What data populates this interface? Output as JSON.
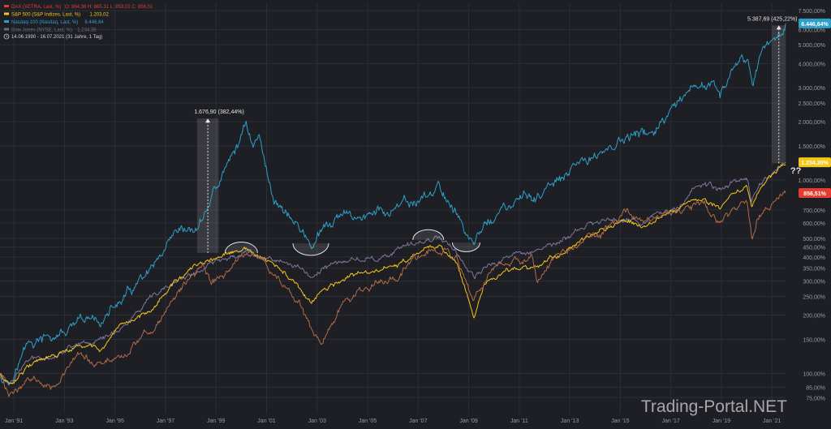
{
  "legend": {
    "items": [
      {
        "label": "DAX (XETRA, Last, %)",
        "ohlc": "O: 864,36  H: 865,31  L: 853,02  C: 856,51",
        "color": "#e03c31"
      },
      {
        "label": "S&P 500 (S&P Indizes, Last, %)",
        "ohlc": "1.203,02",
        "color": "#f5c518"
      },
      {
        "label": "Nasdaq-100 (Nasdaq, Last, %)",
        "ohlc": "6.446,64",
        "color": "#2e9fc7"
      },
      {
        "label": "Dow Jones (NYSE, Last, %)",
        "ohlc": "1.234,36",
        "color": "#6e6e78"
      }
    ],
    "period": "14.06.1990 - 16.07.2021  (31 Jahre, 1 Tag)"
  },
  "watermark": "Trading-Portal.NET",
  "annotations": {
    "peak2000": "1.676,90 (382,44%)",
    "now2021": "5.387,69 (425,22%)",
    "question": "??"
  },
  "colors": {
    "background": "#1e1f25",
    "grid": "#2c2e36",
    "nasdaq": "#2e9fc7",
    "sp500": "#f5c518",
    "dow": "#7e7599",
    "dax": "#b06a45",
    "text": "#9a9aa2"
  },
  "chart_data": {
    "type": "line",
    "title": "",
    "xlabel": "",
    "ylabel": "",
    "scale": "log",
    "xlim": [
      1990.45,
      2021.54
    ],
    "ylim": [
      62,
      8200
    ],
    "x_ticks": [
      {
        "year": 1991.0,
        "label": "Jan '91"
      },
      {
        "year": 1993.0,
        "label": "Jan '93"
      },
      {
        "year": 1995.0,
        "label": "Jan '95"
      },
      {
        "year": 1997.0,
        "label": "Jan '97"
      },
      {
        "year": 1999.0,
        "label": "Jan '99"
      },
      {
        "year": 2001.0,
        "label": "Jan '01"
      },
      {
        "year": 2003.0,
        "label": "Jan '03"
      },
      {
        "year": 2005.0,
        "label": "Jan '05"
      },
      {
        "year": 2007.0,
        "label": "Jan '07"
      },
      {
        "year": 2009.0,
        "label": "Jan '09"
      },
      {
        "year": 2011.0,
        "label": "Jan '11"
      },
      {
        "year": 2013.0,
        "label": "Jan '13"
      },
      {
        "year": 2015.0,
        "label": "Jan '15"
      },
      {
        "year": 2017.0,
        "label": "Jan '17"
      },
      {
        "year": 2019.0,
        "label": "Jan '19"
      },
      {
        "year": 2021.0,
        "label": "Jan '21"
      }
    ],
    "y_ticks": [
      {
        "value": 7500,
        "label": "7.500,00%"
      },
      {
        "value": 6000,
        "label": "6.000,00%"
      },
      {
        "value": 5000,
        "label": "5.000,00%"
      },
      {
        "value": 4000,
        "label": "4.000,00%"
      },
      {
        "value": 3000,
        "label": "3.000,00%"
      },
      {
        "value": 2500,
        "label": "2.500,00%"
      },
      {
        "value": 2000,
        "label": "2.000,00%"
      },
      {
        "value": 1500,
        "label": "1.500,00%"
      },
      {
        "value": 1000,
        "label": "1.000,00%"
      },
      {
        "value": 700,
        "label": "700,00%"
      },
      {
        "value": 600,
        "label": "600,00%"
      },
      {
        "value": 500,
        "label": "500,00%"
      },
      {
        "value": 450,
        "label": "450,00%"
      },
      {
        "value": 400,
        "label": "400,00%"
      },
      {
        "value": 350,
        "label": "350,00%"
      },
      {
        "value": 300,
        "label": "300,00%"
      },
      {
        "value": 250,
        "label": "250,00%"
      },
      {
        "value": 200,
        "label": "200,00%"
      },
      {
        "value": 150,
        "label": "150,00%"
      },
      {
        "value": 100,
        "label": "100,00%"
      },
      {
        "value": 85,
        "label": "85,00%"
      },
      {
        "value": 75,
        "label": "75,00%"
      }
    ],
    "right_badges": [
      {
        "series": "nasdaq",
        "label": "6.446,64%",
        "value": 6446.64,
        "bg": "#2e9fc7"
      },
      {
        "series": "dow",
        "label": "1.234,36%",
        "value": 1234.36,
        "bg": "#f5c518"
      },
      {
        "series": "dax",
        "label": "856,51%",
        "value": 856.51,
        "bg": "#e03c31"
      }
    ],
    "series": [
      {
        "name": "Nasdaq-100",
        "key": "nasdaq",
        "color": "#2e9fc7",
        "noise": 0.035,
        "x": [
          1990.45,
          1990.8,
          1991.5,
          1992.5,
          1993.5,
          1994.5,
          1995.5,
          1996.5,
          1997.5,
          1998.3,
          1998.8,
          1999.5,
          2000.0,
          2000.2,
          2000.45,
          2000.7,
          2001.0,
          2001.3,
          2001.8,
          2002.3,
          2002.75,
          2003.2,
          2003.8,
          2004.5,
          2005.5,
          2006.5,
          2007.3,
          2007.8,
          2008.3,
          2008.8,
          2009.2,
          2009.5,
          2010.0,
          2011.0,
          2012.0,
          2013.0,
          2014.0,
          2015.0,
          2016.0,
          2017.0,
          2018.0,
          2018.7,
          2018.95,
          2019.5,
          2020.0,
          2020.15,
          2020.25,
          2020.5,
          2021.0,
          2021.3,
          2021.54
        ],
        "y": [
          100,
          92,
          140,
          150,
          170,
          190,
          250,
          330,
          480,
          550,
          800,
          1200,
          1650,
          2000,
          1550,
          1700,
          1100,
          800,
          700,
          560,
          460,
          520,
          620,
          640,
          680,
          710,
          820,
          900,
          760,
          580,
          450,
          560,
          650,
          760,
          860,
          1050,
          1350,
          1600,
          1700,
          2100,
          2800,
          3300,
          2700,
          3500,
          4200,
          3600,
          3100,
          4500,
          5400,
          5900,
          6446
        ]
      },
      {
        "name": "Dow Jones",
        "key": "dow",
        "color": "#7e7599",
        "noise": 0.018,
        "x": [
          1990.45,
          1990.8,
          1991.5,
          1992.5,
          1993.5,
          1994.5,
          1995.5,
          1996.5,
          1997.5,
          1998.5,
          1999.5,
          2000.0,
          2000.7,
          2001.7,
          2002.75,
          2003.5,
          2004.5,
          2005.5,
          2006.5,
          2007.8,
          2008.5,
          2009.2,
          2009.6,
          2010.5,
          2011.5,
          2012.5,
          2013.5,
          2014.5,
          2015.5,
          2016.0,
          2016.9,
          2017.5,
          2018.0,
          2018.95,
          2019.5,
          2020.0,
          2020.2,
          2020.5,
          2021.0,
          2021.54
        ],
        "y": [
          100,
          90,
          115,
          125,
          145,
          150,
          185,
          240,
          300,
          345,
          400,
          430,
          410,
          380,
          320,
          360,
          390,
          400,
          440,
          520,
          440,
          300,
          340,
          400,
          440,
          470,
          560,
          620,
          650,
          600,
          720,
          800,
          960,
          880,
          990,
          1050,
          780,
          970,
          1100,
          1234
        ]
      },
      {
        "name": "S&P 500",
        "key": "sp500",
        "color": "#f5c518",
        "noise": 0.016,
        "x": [
          1990.45,
          1990.8,
          1991.5,
          1992.5,
          1993.5,
          1994.5,
          1995.5,
          1996.5,
          1997.5,
          1998.5,
          1999.5,
          2000.2,
          2000.7,
          2001.7,
          2002.75,
          2003.5,
          2004.5,
          2005.5,
          2006.5,
          2007.8,
          2008.5,
          2009.2,
          2009.6,
          2010.5,
          2011.5,
          2012.5,
          2013.5,
          2014.5,
          2015.5,
          2016.0,
          2017.0,
          2018.0,
          2018.95,
          2019.5,
          2020.0,
          2020.2,
          2020.5,
          2021.0,
          2021.54
        ],
        "y": [
          100,
          88,
          110,
          120,
          135,
          135,
          175,
          225,
          310,
          370,
          410,
          430,
          400,
          330,
          230,
          280,
          320,
          340,
          380,
          460,
          380,
          205,
          290,
          330,
          360,
          400,
          510,
          580,
          620,
          580,
          690,
          820,
          720,
          850,
          950,
          680,
          900,
          1100,
          1203
        ]
      },
      {
        "name": "DAX",
        "key": "dax",
        "color": "#b06a45",
        "noise": 0.025,
        "x": [
          1990.45,
          1990.8,
          1991.5,
          1992.5,
          1993.5,
          1994.5,
          1995.5,
          1996.5,
          1997.5,
          1998.5,
          1998.8,
          1999.5,
          2000.2,
          2000.7,
          2001.7,
          2002.3,
          2002.75,
          2003.2,
          2004.0,
          2005.5,
          2006.5,
          2007.5,
          2008.5,
          2009.2,
          2010.0,
          2011.5,
          2011.7,
          2012.5,
          2013.5,
          2014.5,
          2015.3,
          2016.0,
          2017.5,
          2018.0,
          2018.95,
          2019.5,
          2020.0,
          2020.2,
          2020.5,
          2021.0,
          2021.54
        ],
        "y": [
          100,
          75,
          95,
          90,
          120,
          110,
          130,
          170,
          260,
          370,
          290,
          330,
          440,
          390,
          280,
          240,
          170,
          140,
          230,
          290,
          360,
          450,
          380,
          240,
          330,
          400,
          300,
          430,
          480,
          550,
          680,
          560,
          700,
          750,
          600,
          680,
          780,
          490,
          680,
          780,
          856
        ]
      }
    ]
  }
}
